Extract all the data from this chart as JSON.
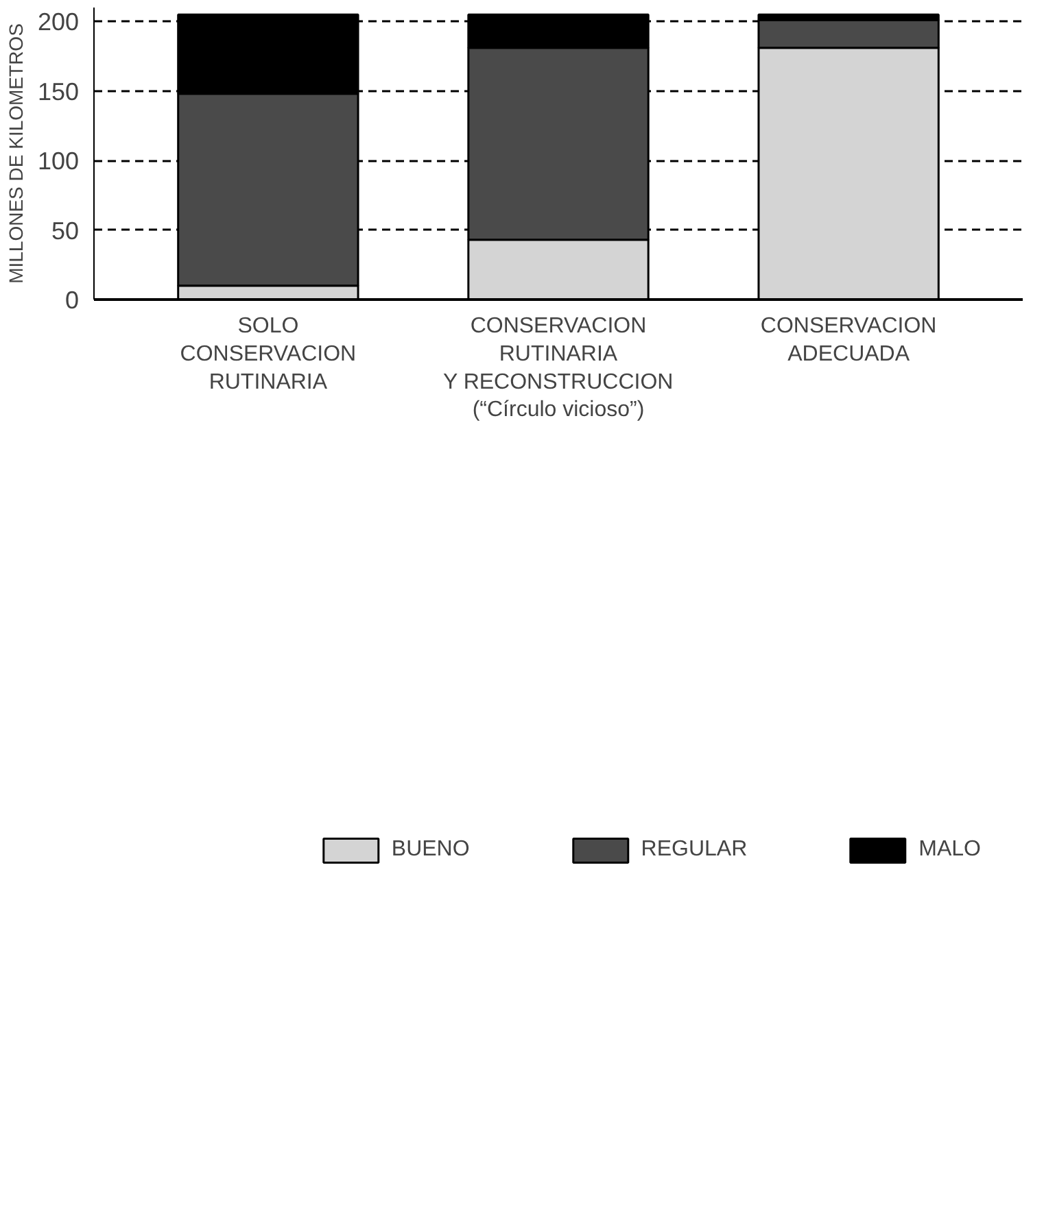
{
  "chart_data": {
    "type": "bar",
    "stacked": true,
    "ylabel": "MILLONES DE KILOMETROS",
    "categories": [
      "SOLO\nCONSERVACION\nRUTINARIA",
      "CONSERVACION\nRUTINARIA\nY RECONSTRUCCION\n(“Círculo vicioso”)",
      "CONSERVACION\nADECUADA"
    ],
    "series": [
      {
        "name": "BUENO",
        "color": "#d4d4d4",
        "values": [
          10,
          43,
          181
        ]
      },
      {
        "name": "REGULAR",
        "color": "#4a4a4a",
        "values": [
          138,
          138,
          20
        ]
      },
      {
        "name": "MALO",
        "color": "#000000",
        "values": [
          57,
          24,
          4
        ]
      }
    ],
    "ylim": [
      0,
      210
    ],
    "yticks": [
      0,
      50,
      100,
      150,
      200
    ],
    "grid": "y",
    "line_style": "dashed",
    "legend": "bottom"
  }
}
